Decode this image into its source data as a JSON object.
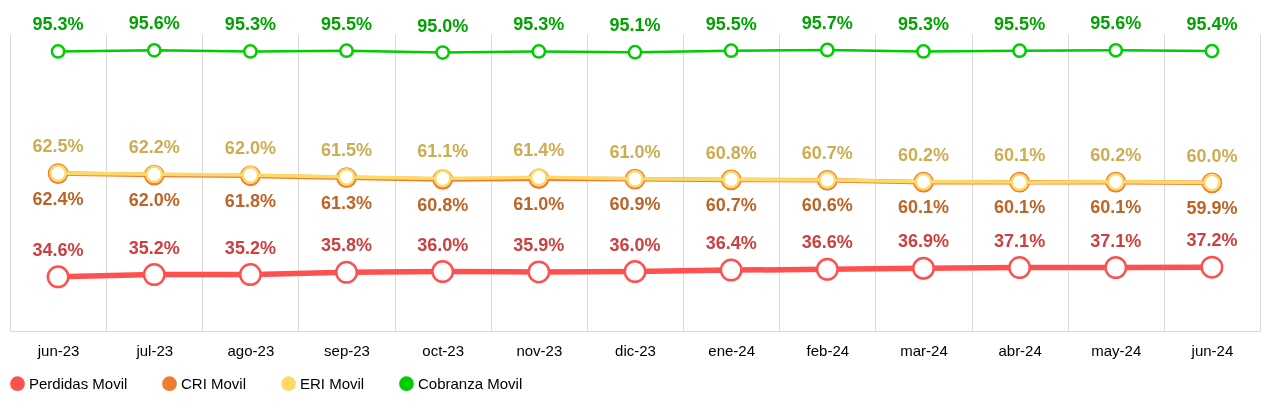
{
  "chart_data": {
    "type": "line",
    "categories": [
      "jun-23",
      "jul-23",
      "ago-23",
      "sep-23",
      "oct-23",
      "nov-23",
      "dic-23",
      "ene-24",
      "feb-24",
      "mar-24",
      "abr-24",
      "may-24",
      "jun-24"
    ],
    "series": [
      {
        "name": "Perdidas Movil",
        "color": "#ff5050",
        "values": [
          34.6,
          35.2,
          35.2,
          35.8,
          36.0,
          35.9,
          36.0,
          36.4,
          36.6,
          36.9,
          37.1,
          37.1,
          37.2
        ],
        "value_labels": [
          "34.6%",
          "35.2%",
          "35.2%",
          "35.8%",
          "36.0%",
          "35.9%",
          "36.0%",
          "36.4%",
          "36.6%",
          "36.9%",
          "37.1%",
          "37.1%",
          "37.2%"
        ]
      },
      {
        "name": "CRI Movil",
        "color": "#ed7d31",
        "values": [
          62.4,
          62.0,
          61.8,
          61.3,
          60.8,
          61.0,
          60.9,
          60.7,
          60.6,
          60.1,
          60.1,
          60.1,
          59.9
        ],
        "value_labels": [
          "62.4%",
          "62.0%",
          "61.8%",
          "61.3%",
          "60.8%",
          "61.0%",
          "60.9%",
          "60.7%",
          "60.6%",
          "60.1%",
          "60.1%",
          "60.1%",
          "59.9%"
        ]
      },
      {
        "name": "ERI Movil",
        "color": "#ffd966",
        "values": [
          62.5,
          62.2,
          62.0,
          61.5,
          61.1,
          61.4,
          61.0,
          60.8,
          60.7,
          60.2,
          60.1,
          60.2,
          60.0
        ],
        "value_labels": [
          "62.5%",
          "62.2%",
          "62.0%",
          "61.5%",
          "61.1%",
          "61.4%",
          "61.0%",
          "60.8%",
          "60.7%",
          "60.2%",
          "60.1%",
          "60.2%",
          "60.0%"
        ]
      },
      {
        "name": "Cobranza Movil",
        "color": "#00cc00",
        "values": [
          95.3,
          95.6,
          95.3,
          95.5,
          95.0,
          95.3,
          95.1,
          95.5,
          95.7,
          95.3,
          95.5,
          95.6,
          95.4
        ],
        "value_labels": [
          "95.3%",
          "95.6%",
          "95.3%",
          "95.5%",
          "95.0%",
          "95.3%",
          "95.1%",
          "95.5%",
          "95.7%",
          "95.3%",
          "95.5%",
          "95.6%",
          "95.4%"
        ]
      }
    ],
    "ylim": [
      20,
      100
    ],
    "tick_labels": "x",
    "grid": "x",
    "legend": "bottom",
    "marker": "circle",
    "line_style": "solid"
  }
}
